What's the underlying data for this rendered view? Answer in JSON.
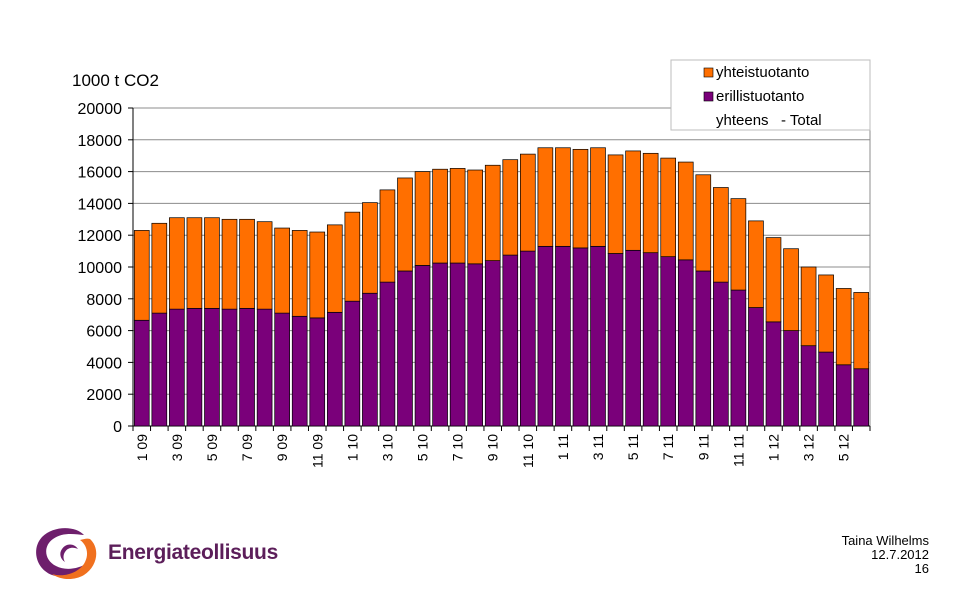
{
  "chart_data": {
    "type": "bar",
    "stacked": true,
    "ylabel": "1000 t CO2",
    "ylim": [
      0,
      20000
    ],
    "yticks": [
      0,
      2000,
      4000,
      6000,
      8000,
      10000,
      12000,
      14000,
      16000,
      18000,
      20000
    ],
    "grid": true,
    "legend_position": "top-right",
    "categories": [
      "1 09",
      "2 09",
      "3 09",
      "4 09",
      "5 09",
      "6 09",
      "7 09",
      "8 09",
      "9 09",
      "10 09",
      "11 09",
      "12 09",
      "1 10",
      "2 10",
      "3 10",
      "4 10",
      "5 10",
      "6 10",
      "7 10",
      "8 10",
      "9 10",
      "10 10",
      "11 10",
      "12 10",
      "1 11",
      "2 11",
      "3 11",
      "4 11",
      "5 11",
      "6 11",
      "7 11",
      "8 11",
      "9 11",
      "10 11",
      "11 11",
      "12 11",
      "1 12",
      "2 12",
      "3 12",
      "4 12",
      "5 12",
      "6 12"
    ],
    "tick_labels": [
      "1 09",
      "",
      "3 09",
      "",
      "5 09",
      "",
      "7 09",
      "",
      "9 09",
      "",
      "11 09",
      "",
      "1 10",
      "",
      "3 10",
      "",
      "5 10",
      "",
      "7 10",
      "",
      "9 10",
      "",
      "11 10",
      "",
      "1 11",
      "",
      "3 11",
      "",
      "5 11",
      "",
      "7 11",
      "",
      "9 11",
      "",
      "11 11",
      "",
      "1 12",
      "",
      "3 12",
      "",
      "5 12",
      ""
    ],
    "series": [
      {
        "name": "erillistuotanto",
        "color": "#7a007a",
        "values": [
          6650,
          7100,
          7350,
          7400,
          7400,
          7350,
          7400,
          7350,
          7100,
          6900,
          6800,
          7150,
          7850,
          8350,
          9050,
          9750,
          10100,
          10250,
          10250,
          10200,
          10400,
          10750,
          11000,
          11300,
          11300,
          11200,
          11300,
          10850,
          11050,
          10900,
          10650,
          10450,
          9750,
          9050,
          8550,
          7450,
          6550,
          6000,
          5050,
          4650,
          3850,
          3600
        ]
      },
      {
        "name": "yhteistuotanto",
        "color": "#ff6f00",
        "values": [
          5650,
          5650,
          5750,
          5700,
          5700,
          5650,
          5600,
          5500,
          5350,
          5400,
          5400,
          5500,
          5600,
          5700,
          5800,
          5850,
          5900,
          5900,
          5950,
          5900,
          6000,
          6000,
          6100,
          6200,
          6200,
          6200,
          6200,
          6200,
          6250,
          6250,
          6200,
          6150,
          6050,
          5950,
          5750,
          5450,
          5300,
          5150,
          4950,
          4850,
          4800,
          4800
        ]
      }
    ],
    "legend_extra": "yhteens   - Total"
  },
  "footer": {
    "author": "Taina Wilhelms",
    "date": "12.7.2012",
    "page": "16"
  },
  "logo": {
    "text": "Energiateollisuus",
    "colors": {
      "purple": "#6e1f6c",
      "orange": "#f0701e"
    }
  }
}
